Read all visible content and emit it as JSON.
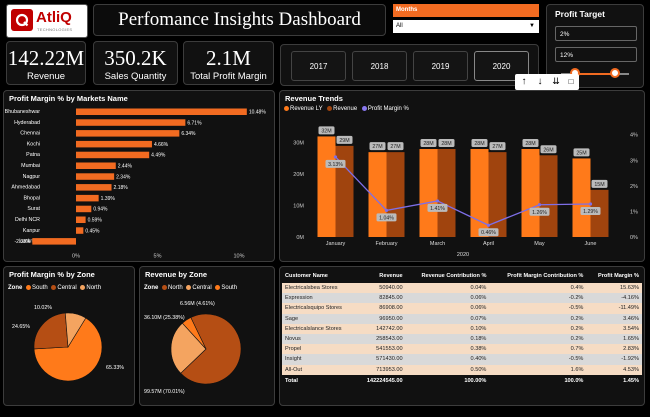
{
  "logo": {
    "brand": "AtliQ",
    "tagline": "TECHNOLOGIES"
  },
  "header": {
    "title": "Perfomance Insights Dashboard"
  },
  "filters": {
    "months_label": "Months",
    "months_value": "All"
  },
  "profit_target": {
    "title": "Profit Target",
    "min_value": "2%",
    "max_value": "12%",
    "slider_low": 0.2,
    "slider_high": 0.8
  },
  "kpis": [
    {
      "value": "142.22M",
      "label": "Revenue"
    },
    {
      "value": "350.2K",
      "label": "Sales Quantity"
    },
    {
      "value": "2.1M",
      "label": "Total Profit Margin"
    }
  ],
  "years": [
    "2017",
    "2018",
    "2019",
    "2020"
  ],
  "selected_year": "2020",
  "markets": {
    "title": "Profit Margin % by Markets Name",
    "ticks": [
      "0%",
      "5%",
      "10%"
    ],
    "items": [
      {
        "name": "Bhubaneshwar",
        "value": 10.48,
        "label": "10.48%"
      },
      {
        "name": "Hyderabad",
        "value": 6.71,
        "label": "6.71%"
      },
      {
        "name": "Chennai",
        "value": 6.34,
        "label": "6.34%"
      },
      {
        "name": "Kochi",
        "value": 4.66,
        "label": "4.66%"
      },
      {
        "name": "Patna",
        "value": 4.49,
        "label": "4.49%"
      },
      {
        "name": "Mumbai",
        "value": 2.44,
        "label": "2.44%"
      },
      {
        "name": "Nagpur",
        "value": 2.34,
        "label": "2.34%"
      },
      {
        "name": "Ahmedabad",
        "value": 2.18,
        "label": "2.18%"
      },
      {
        "name": "Bhopal",
        "value": 1.39,
        "label": "1.39%"
      },
      {
        "name": "Surat",
        "value": 0.94,
        "label": "0.94%"
      },
      {
        "name": "Delhi NCR",
        "value": 0.59,
        "label": "0.59%"
      },
      {
        "name": "Kanpur",
        "value": 0.45,
        "label": "0.45%"
      },
      {
        "name": "Lucknow",
        "value": -2.68,
        "label": "-2.68%"
      }
    ]
  },
  "trends": {
    "title": "Revenue Trends",
    "legend": [
      "Revenue LY",
      "Revenue",
      "Profit Margin %"
    ],
    "xlabel": "2020",
    "y_ticks": [
      "0M",
      "10M",
      "20M",
      "30M"
    ],
    "y2_ticks": [
      "0%",
      "1%",
      "2%",
      "3%",
      "4%"
    ],
    "months": [
      "January",
      "February",
      "March",
      "April",
      "May",
      "June"
    ],
    "revenue_ly": [
      32,
      27,
      28,
      28,
      28,
      25
    ],
    "revenue": [
      29,
      27,
      28,
      27,
      26,
      15
    ],
    "revenue_ly_labels": [
      "32M",
      "27M",
      "28M",
      "28M",
      "28M",
      "25M"
    ],
    "revenue_labels": [
      "29M",
      "27M",
      "28M",
      "27M",
      "26M",
      "15M"
    ],
    "margin": [
      3.13,
      1.04,
      1.41,
      0.46,
      1.26,
      1.29
    ],
    "margin_labels": [
      "3.13%",
      "1.04%",
      "1.41%",
      "0.46%",
      "1.26%",
      "1.29%"
    ]
  },
  "zone_margin": {
    "title": "Profit Margin % by Zone",
    "legend_label": "Zone",
    "legend": [
      "South",
      "Central",
      "North"
    ],
    "values": [
      65.33,
      24.65,
      10.02
    ],
    "labels": [
      "65.33%",
      "24.65%",
      "10.02%"
    ],
    "colors": [
      "#ff7a1a",
      "#b54e14",
      "#f4a460"
    ]
  },
  "zone_revenue": {
    "title": "Revenue by Zone",
    "legend_label": "Zone",
    "legend": [
      "North",
      "Central",
      "South"
    ],
    "values": [
      70.01,
      25.38,
      4.61
    ],
    "labels": [
      "99.57M (70.01%)",
      "36.10M (25.38%)",
      "6.56M (4.61%)"
    ],
    "colors": [
      "#b54e14",
      "#f4a460",
      "#ff7a1a"
    ]
  },
  "table": {
    "headers": [
      "Customer Name",
      "Revenue",
      "Revenue Contribution %",
      "Profit Margin Contribution %",
      "Profit Margin %"
    ],
    "rows": [
      [
        "Electricalsbea Stores",
        "50940.00",
        "0.04%",
        "0.4%",
        "15.63%"
      ],
      [
        "Expression",
        "82845.00",
        "0.06%",
        "-0.2%",
        "-4.16%"
      ],
      [
        "Electricalsquipo Stores",
        "86908.00",
        "0.06%",
        "-0.5%",
        "-11.49%"
      ],
      [
        "Sage",
        "96950.00",
        "0.07%",
        "0.2%",
        "3.46%"
      ],
      [
        "Electricalslance Stores",
        "142742.00",
        "0.10%",
        "0.2%",
        "3.54%"
      ],
      [
        "Novus",
        "258543.00",
        "0.18%",
        "0.2%",
        "1.65%"
      ],
      [
        "Propel",
        "541553.00",
        "0.38%",
        "0.7%",
        "2.83%"
      ],
      [
        "Insight",
        "571430.00",
        "0.40%",
        "-0.5%",
        "-1.92%"
      ],
      [
        "All-Out",
        "713953.00",
        "0.50%",
        "1.6%",
        "4.53%"
      ]
    ],
    "total": [
      "Total",
      "142224545.00",
      "100.00%",
      "100.0%",
      "1.45%"
    ]
  }
}
